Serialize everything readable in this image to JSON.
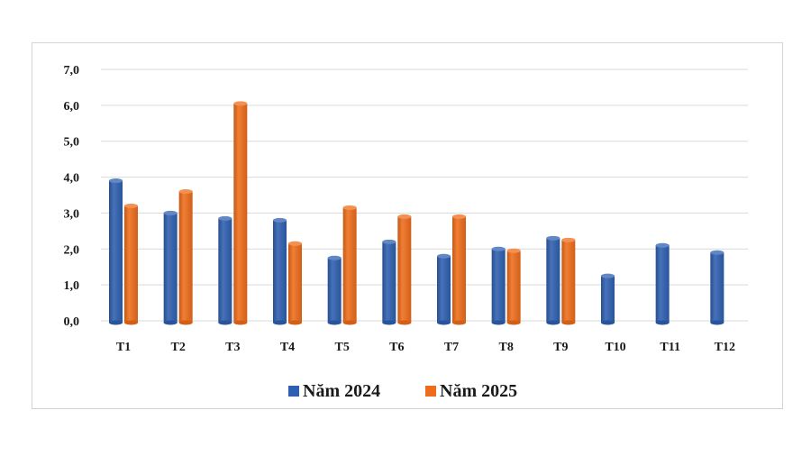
{
  "chart_data": {
    "type": "bar",
    "title": "",
    "xlabel": "",
    "ylabel": "",
    "categories": [
      "T1",
      "T2",
      "T3",
      "T4",
      "T5",
      "T6",
      "T7",
      "T8",
      "T9",
      "T10",
      "T11",
      "T12"
    ],
    "series": [
      {
        "name": "Năm 2024",
        "color": "#2e5fb0",
        "values": [
          3.9,
          3.0,
          2.85,
          2.8,
          1.75,
          2.2,
          1.8,
          2.0,
          2.3,
          1.25,
          2.1,
          1.9
        ]
      },
      {
        "name": "Năm 2025",
        "color": "#ef6c1a",
        "values": [
          3.2,
          3.6,
          6.05,
          2.15,
          3.15,
          2.9,
          2.9,
          1.95,
          2.25,
          null,
          null,
          null
        ]
      }
    ],
    "yticks": [
      "0,0",
      "1,0",
      "2,0",
      "3,0",
      "4,0",
      "5,0",
      "6,0",
      "7,0"
    ],
    "ylim": [
      0,
      7
    ],
    "grid": true,
    "legend_position": "bottom"
  }
}
